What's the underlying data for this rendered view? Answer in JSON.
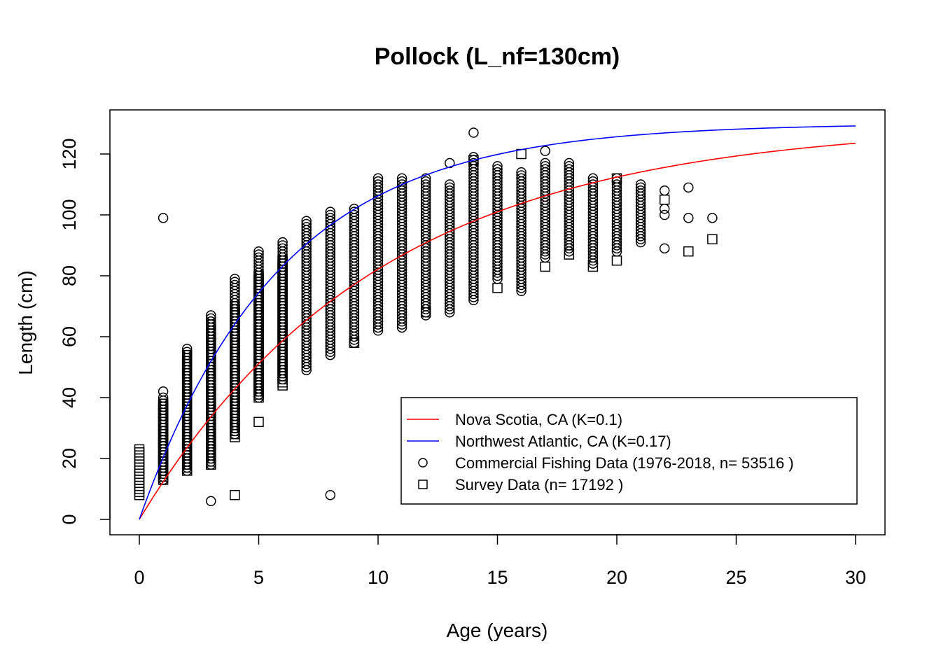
{
  "chart_data": {
    "type": "scatter",
    "title": "Pollock (L_nf=130cm)",
    "xlabel": "Age (years)",
    "ylabel": "Length (cm)",
    "xlim": [
      0,
      30
    ],
    "ylim": [
      0,
      130
    ],
    "xticks": [
      0,
      5,
      10,
      15,
      20,
      25,
      30
    ],
    "yticks": [
      0,
      20,
      40,
      60,
      80,
      100,
      120
    ],
    "grid": false,
    "legend_position": "bottom-right",
    "curves": [
      {
        "name": "Nova Scotia, CA (K=0.1)",
        "color": "#ff0000",
        "Linf": 130,
        "K": 0.1,
        "t0": 0
      },
      {
        "name": "Northwest Atlantic, CA (K=0.17)",
        "color": "#0000ff",
        "Linf": 130,
        "K": 0.17,
        "t0": 0
      }
    ],
    "commercial": {
      "name": "Commercial Fishing Data (1976-2018, n= 53516 )",
      "marker": "circle",
      "ranges": [
        {
          "age": 1,
          "min": 13,
          "max": 40
        },
        {
          "age": 2,
          "min": 16,
          "max": 56
        },
        {
          "age": 3,
          "min": 18,
          "max": 67
        },
        {
          "age": 4,
          "min": 28,
          "max": 79
        },
        {
          "age": 5,
          "min": 40,
          "max": 88
        },
        {
          "age": 6,
          "min": 46,
          "max": 91
        },
        {
          "age": 7,
          "min": 49,
          "max": 98
        },
        {
          "age": 8,
          "min": 54,
          "max": 101
        },
        {
          "age": 9,
          "min": 58,
          "max": 102
        },
        {
          "age": 10,
          "min": 62,
          "max": 112
        },
        {
          "age": 11,
          "min": 63,
          "max": 112
        },
        {
          "age": 12,
          "min": 67,
          "max": 112
        },
        {
          "age": 13,
          "min": 68,
          "max": 110
        },
        {
          "age": 14,
          "min": 72,
          "max": 119
        },
        {
          "age": 15,
          "min": 79,
          "max": 116
        },
        {
          "age": 16,
          "min": 75,
          "max": 114
        },
        {
          "age": 17,
          "min": 86,
          "max": 117
        },
        {
          "age": 18,
          "min": 88,
          "max": 117
        },
        {
          "age": 19,
          "min": 84,
          "max": 112
        },
        {
          "age": 20,
          "min": 88,
          "max": 112
        },
        {
          "age": 21,
          "min": 91,
          "max": 110
        }
      ],
      "points": [
        {
          "x": 1,
          "y": 99
        },
        {
          "x": 1,
          "y": 42
        },
        {
          "x": 3,
          "y": 6
        },
        {
          "x": 8,
          "y": 8
        },
        {
          "x": 13,
          "y": 117
        },
        {
          "x": 14,
          "y": 127
        },
        {
          "x": 17,
          "y": 121
        },
        {
          "x": 22,
          "y": 108
        },
        {
          "x": 22,
          "y": 102
        },
        {
          "x": 22,
          "y": 100
        },
        {
          "x": 22,
          "y": 89
        },
        {
          "x": 23,
          "y": 109
        },
        {
          "x": 23,
          "y": 99
        },
        {
          "x": 24,
          "y": 99
        }
      ]
    },
    "survey": {
      "name": "Survey Data (n= 17192 )",
      "marker": "square",
      "ranges": [
        {
          "age": 0,
          "min": 8,
          "max": 23
        },
        {
          "age": 1,
          "min": 13,
          "max": 38
        },
        {
          "age": 2,
          "min": 16,
          "max": 54
        },
        {
          "age": 3,
          "min": 18,
          "max": 64
        },
        {
          "age": 4,
          "min": 27,
          "max": 70
        },
        {
          "age": 5,
          "min": 40,
          "max": 80
        },
        {
          "age": 6,
          "min": 44,
          "max": 85
        }
      ],
      "points": [
        {
          "x": 4,
          "y": 8
        },
        {
          "x": 5,
          "y": 32
        },
        {
          "x": 9,
          "y": 58
        },
        {
          "x": 12,
          "y": 68
        },
        {
          "x": 14,
          "y": 118
        },
        {
          "x": 15,
          "y": 76
        },
        {
          "x": 16,
          "y": 120
        },
        {
          "x": 17,
          "y": 83
        },
        {
          "x": 18,
          "y": 87
        },
        {
          "x": 19,
          "y": 83
        },
        {
          "x": 20,
          "y": 85
        },
        {
          "x": 20,
          "y": 112
        },
        {
          "x": 22,
          "y": 105
        },
        {
          "x": 23,
          "y": 88
        },
        {
          "x": 24,
          "y": 92
        }
      ]
    }
  }
}
